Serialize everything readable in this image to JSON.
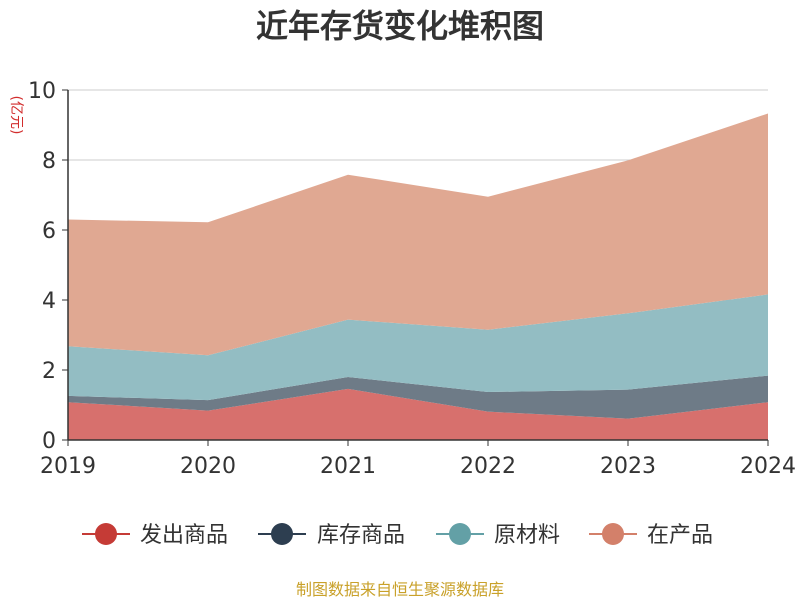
{
  "chart_data": {
    "type": "area",
    "stacked": true,
    "title": "近年存货变化堆积图",
    "ylabel": "(亿元)",
    "xlabel": "",
    "x": [
      "2019",
      "2020",
      "2021",
      "2022",
      "2023",
      "2024"
    ],
    "ylim": [
      0,
      10
    ],
    "yticks": [
      0,
      2,
      4,
      6,
      8,
      10
    ],
    "grid": true,
    "legend_position": "bottom",
    "series": [
      {
        "name": "发出商品",
        "values": [
          1.08,
          0.84,
          1.46,
          0.81,
          0.61,
          1.08
        ],
        "color": "#d7706d",
        "marker_color": "#c53b36"
      },
      {
        "name": "库存商品",
        "values": [
          0.18,
          0.3,
          0.34,
          0.56,
          0.83,
          0.76
        ],
        "color": "#6e7b87",
        "marker_color": "#2d3e50"
      },
      {
        "name": "原材料",
        "values": [
          1.42,
          1.28,
          1.64,
          1.78,
          2.18,
          2.32
        ],
        "color": "#93bdc3",
        "marker_color": "#63a0a6"
      },
      {
        "name": "在产品",
        "values": [
          3.62,
          3.8,
          4.14,
          3.8,
          4.37,
          5.17
        ],
        "color": "#e0a892",
        "marker_color": "#d3806a"
      }
    ]
  },
  "footer": {
    "source": "制图数据来自恒生聚源数据库"
  }
}
